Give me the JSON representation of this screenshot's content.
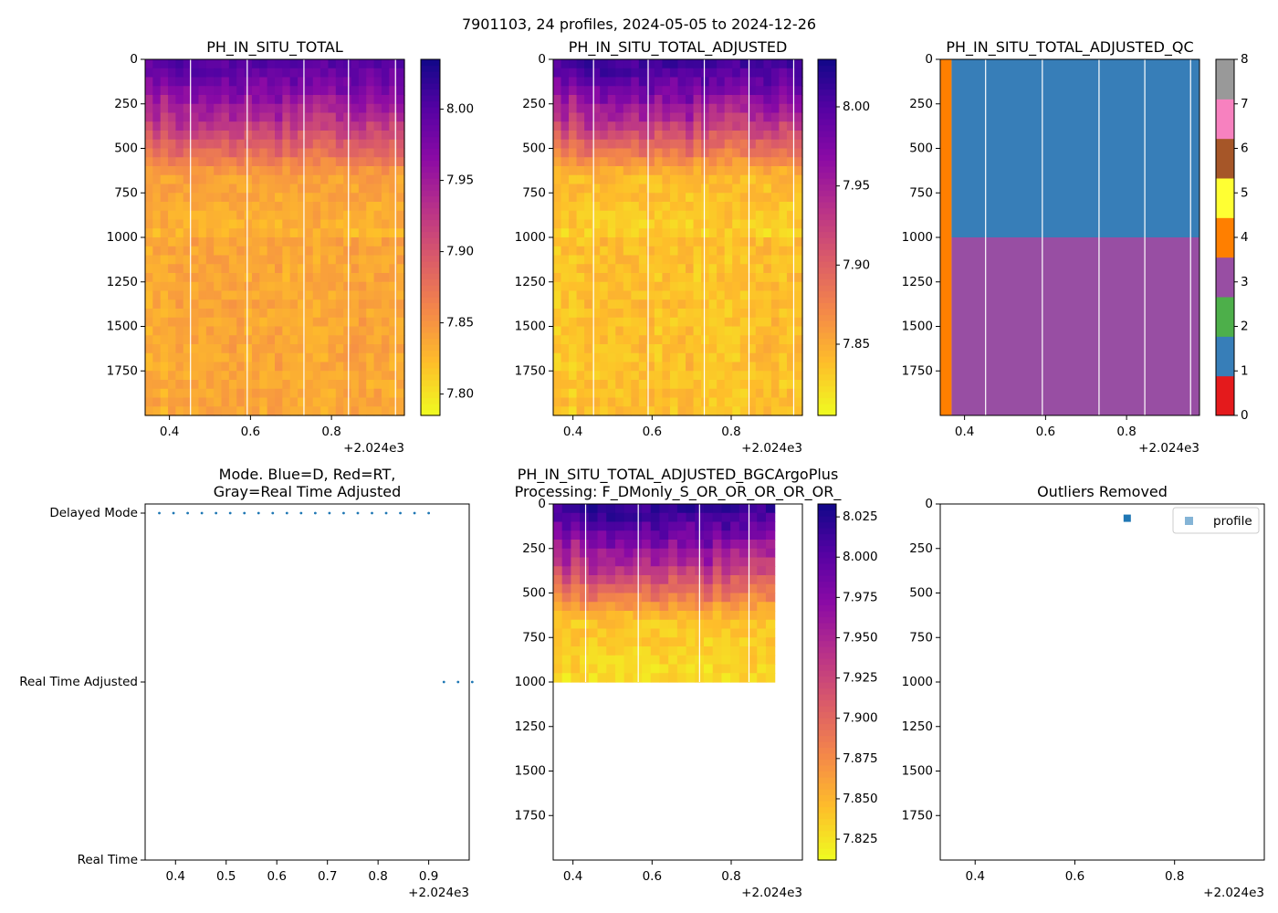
{
  "figure_title": "7901103, 24 profiles, 2024-05-05 to 2024-12-26",
  "colors": {
    "plasma": [
      "#0d0887",
      "#5402a3",
      "#8b0aa5",
      "#b93289",
      "#db5c68",
      "#f48849",
      "#febd2a",
      "#f0f921"
    ],
    "qc": [
      "#e41a1c",
      "#377eb8",
      "#4daf4a",
      "#984ea3",
      "#ff7f00",
      "#ffff33",
      "#a65628",
      "#f781bf",
      "#999999"
    ],
    "mode_dots": "#1f77b4",
    "outlier": "#1f77b4"
  },
  "chart_data": [
    {
      "id": "raw",
      "type": "heatmap",
      "title": "PH_IN_SITU_TOTAL",
      "xlim": [
        2024.34,
        2024.98
      ],
      "xticks": [
        "0.4",
        "0.6",
        "0.8"
      ],
      "x_offset_label": "+2.024e3",
      "ylim": [
        2000,
        0
      ],
      "yticks": [
        "0",
        "250",
        "500",
        "750",
        "1000",
        "1250",
        "1500",
        "1750"
      ],
      "colorbar": {
        "min": 7.785,
        "max": 8.035,
        "ticks": [
          "7.80",
          "7.85",
          "7.90",
          "7.95",
          "8.00"
        ]
      },
      "profile_count": 34,
      "gap_lines_x": [
        2024.452,
        2024.592,
        2024.732,
        2024.842,
        2024.958
      ],
      "surface_value": 8.0,
      "mid_value": 7.84,
      "deep_value": 7.835,
      "deep_limit": 2000
    },
    {
      "id": "adjusted",
      "type": "heatmap",
      "title": "PH_IN_SITU_TOTAL_ADJUSTED",
      "xlim": [
        2024.35,
        2024.98
      ],
      "xticks": [
        "0.4",
        "0.6",
        "0.8"
      ],
      "x_offset_label": "+2.024e3",
      "ylim": [
        2000,
        0
      ],
      "yticks": [
        "0",
        "250",
        "500",
        "750",
        "1000",
        "1250",
        "1500",
        "1750"
      ],
      "colorbar": {
        "min": 7.805,
        "max": 8.03,
        "ticks": [
          "7.85",
          "7.90",
          "7.95",
          "8.00"
        ]
      },
      "profile_count": 32,
      "gap_lines_x": [
        2024.452,
        2024.59,
        2024.732,
        2024.845,
        2024.958
      ],
      "surface_value": 8.01,
      "mid_value": 7.84,
      "deep_value": 7.835,
      "deep_limit": 2000
    },
    {
      "id": "adjusted_qc",
      "type": "heatmap",
      "title": "PH_IN_SITU_TOTAL_ADJUSTED_QC",
      "xlim": [
        2024.34,
        2024.98
      ],
      "xticks": [
        "0.4",
        "0.6",
        "0.8"
      ],
      "x_offset_label": "+2.024e3",
      "ylim": [
        2000,
        0
      ],
      "yticks": [
        "0",
        "250",
        "500",
        "750",
        "1000",
        "1250",
        "1500",
        "1750"
      ],
      "colorbar": {
        "min": 0,
        "max": 8,
        "ticks": [
          "0",
          "1",
          "2",
          "3",
          "4",
          "5",
          "6",
          "7",
          "8"
        ]
      },
      "gap_lines_x": [
        2024.452,
        2024.592,
        2024.732,
        2024.845,
        2024.958
      ],
      "qc_blocks": [
        {
          "x0": 2024.34,
          "x1": 2024.368,
          "y0": 0,
          "y1": 2000,
          "flag": 4
        },
        {
          "x0": 2024.368,
          "x1": 2024.98,
          "y0": 0,
          "y1": 1000,
          "flag": 1
        },
        {
          "x0": 2024.368,
          "x1": 2024.98,
          "y0": 1000,
          "y1": 2000,
          "flag": 3
        }
      ]
    },
    {
      "id": "mode",
      "type": "scatter",
      "title": "Mode. Blue=D, Red=RT,\nGray=Real Time Adjusted",
      "xlim": [
        2024.34,
        2024.98
      ],
      "xticks": [
        "0.4",
        "0.5",
        "0.6",
        "0.7",
        "0.8",
        "0.9"
      ],
      "x_offset_label": "+2.024e3",
      "ylim": [
        0,
        2
      ],
      "yticks": [
        "Real Time",
        "Real Time Adjusted",
        "Delayed Mode"
      ],
      "series": [
        {
          "name": "Delayed Mode",
          "y": 2,
          "x": [
            2024.368,
            2024.396,
            2024.424,
            2024.452,
            2024.48,
            2024.508,
            2024.536,
            2024.564,
            2024.592,
            2024.62,
            2024.648,
            2024.676,
            2024.704,
            2024.732,
            2024.76,
            2024.788,
            2024.816,
            2024.844,
            2024.872,
            2024.9
          ]
        },
        {
          "name": "Real Time Adjusted",
          "y": 1,
          "x": [
            2024.93,
            2024.958,
            2024.986
          ]
        }
      ]
    },
    {
      "id": "bgcargoplus",
      "type": "heatmap",
      "title": "PH_IN_SITU_TOTAL_ADJUSTED_BGCArgoPlus\nProcessing: F_DMonly_S_OR_OR_OR_OR_OR_",
      "xlim": [
        2024.35,
        2024.98
      ],
      "xticks": [
        "0.4",
        "0.6",
        "0.8"
      ],
      "x_offset_label": "+2.024e3",
      "ylim": [
        2000,
        0
      ],
      "yticks": [
        "0",
        "250",
        "500",
        "750",
        "1000",
        "1250",
        "1500",
        "1750"
      ],
      "colorbar": {
        "min": 7.812,
        "max": 8.033,
        "ticks": [
          "7.825",
          "7.850",
          "7.875",
          "7.900",
          "7.925",
          "7.950",
          "7.975",
          "8.000",
          "8.025"
        ]
      },
      "profile_count": 25,
      "x_max_data": 2024.91,
      "gap_lines_x": [
        2024.432,
        2024.565,
        2024.72,
        2024.845
      ],
      "surface_value": 8.02,
      "mid_value": 7.84,
      "deep_value": 7.83,
      "deep_limit": 1000
    },
    {
      "id": "outliers",
      "type": "scatter",
      "title": "Outliers Removed",
      "xlim": [
        2024.33,
        2024.98
      ],
      "xticks": [
        "0.4",
        "0.6",
        "0.8"
      ],
      "x_offset_label": "+2.024e3",
      "ylim": [
        2000,
        0
      ],
      "yticks": [
        "0",
        "250",
        "500",
        "750",
        "1000",
        "1250",
        "1500",
        "1750"
      ],
      "legend": "profile",
      "legend_position": "top-right",
      "points": [
        {
          "x": 2024.705,
          "y": 80
        }
      ]
    }
  ]
}
